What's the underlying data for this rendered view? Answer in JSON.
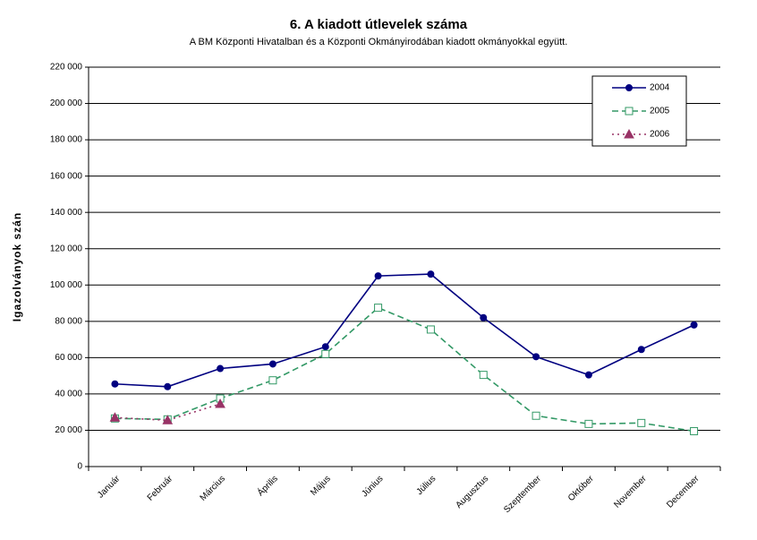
{
  "chart_data": {
    "type": "line",
    "title": "6. A  kiadott útlevelek száma",
    "subtitle": "A BM Központi Hivatalban és a Központi Okmányirodában kiadott okmányokkal együtt.",
    "y_label": "Igazolványok szán",
    "categories": [
      "Január",
      "Február",
      "Március",
      "Április",
      "Május",
      "Június",
      "Július",
      "Augusztus",
      "Szeptember",
      "Október",
      "November",
      "December"
    ],
    "series": [
      {
        "name": "2004",
        "color": "#000080",
        "marker": "circle",
        "dash": "none",
        "values": [
          45500,
          44000,
          54000,
          56500,
          66000,
          105000,
          106000,
          82000,
          60500,
          50500,
          64500,
          78000
        ]
      },
      {
        "name": "2005",
        "color": "#339966",
        "marker": "square",
        "dash": "7,4",
        "values": [
          26500,
          26000,
          37500,
          47500,
          62000,
          87500,
          75500,
          50500,
          28000,
          23500,
          24000,
          19500
        ]
      },
      {
        "name": "2006",
        "color": "#993366",
        "marker": "triangle",
        "dash": "2,4",
        "values": [
          27000,
          25500,
          34500,
          null,
          null,
          null,
          null,
          null,
          null,
          null,
          null,
          null
        ]
      }
    ],
    "ylim": [
      0,
      220000
    ],
    "yticks": [
      0,
      {
        "value": 20000,
        "label": "20 000"
      },
      {
        "value": 40000,
        "label": "40 000"
      },
      {
        "value": 60000,
        "label": "60 000"
      },
      {
        "value": 80000,
        "label": "80 000"
      },
      {
        "value": 100000,
        "label": "100 000"
      },
      {
        "value": 120000,
        "label": "120 000"
      },
      {
        "value": 140000,
        "label": "140 000"
      },
      {
        "value": 160000,
        "label": "160 000"
      },
      {
        "value": 180000,
        "label": "180 000"
      },
      {
        "value": 200000,
        "label": "200 000"
      },
      {
        "value": 220000,
        "label": "220 000"
      }
    ],
    "grid": true,
    "legend": "top-right"
  }
}
